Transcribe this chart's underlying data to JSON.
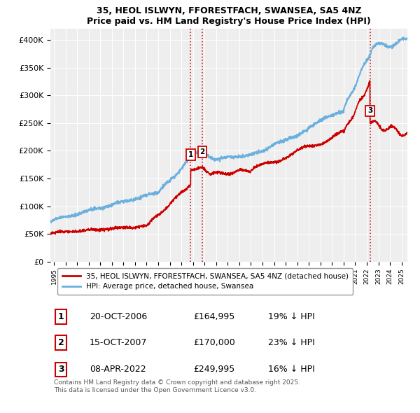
{
  "title": "35, HEOL ISLWYN, FFORESTFACH, SWANSEA, SA5 4NZ",
  "subtitle": "Price paid vs. HM Land Registry's House Price Index (HPI)",
  "ylabel_ticks": [
    "£0",
    "£50K",
    "£100K",
    "£150K",
    "£200K",
    "£250K",
    "£300K",
    "£350K",
    "£400K"
  ],
  "ytick_values": [
    0,
    50000,
    100000,
    150000,
    200000,
    250000,
    300000,
    350000,
    400000
  ],
  "ylim": [
    0,
    420000
  ],
  "xlim_start": 1994.7,
  "xlim_end": 2025.5,
  "hpi_color": "#6ab0de",
  "price_color": "#cc0000",
  "vline_color": "#cc0000",
  "background_color": "#eeeeee",
  "sale_dates": [
    2006.8,
    2007.79,
    2022.27
  ],
  "sale_prices": [
    164995,
    170000,
    249995
  ],
  "sale_labels": [
    "1",
    "2",
    "3"
  ],
  "legend_line1": "35, HEOL ISLWYN, FFORESTFACH, SWANSEA, SA5 4NZ (detached house)",
  "legend_line2": "HPI: Average price, detached house, Swansea",
  "table_entries": [
    {
      "num": "1",
      "date": "20-OCT-2006",
      "price": "£164,995",
      "note": "19% ↓ HPI"
    },
    {
      "num": "2",
      "date": "15-OCT-2007",
      "price": "£170,000",
      "note": "23% ↓ HPI"
    },
    {
      "num": "3",
      "date": "08-APR-2022",
      "price": "£249,995",
      "note": "16% ↓ HPI"
    }
  ],
  "footer": "Contains HM Land Registry data © Crown copyright and database right 2025.\nThis data is licensed under the Open Government Licence v3.0.",
  "xtick_years": [
    1995,
    1996,
    1997,
    1998,
    1999,
    2000,
    2001,
    2002,
    2003,
    2004,
    2005,
    2006,
    2007,
    2008,
    2009,
    2010,
    2011,
    2012,
    2013,
    2014,
    2015,
    2016,
    2017,
    2018,
    2019,
    2020,
    2021,
    2022,
    2023,
    2024,
    2025
  ]
}
